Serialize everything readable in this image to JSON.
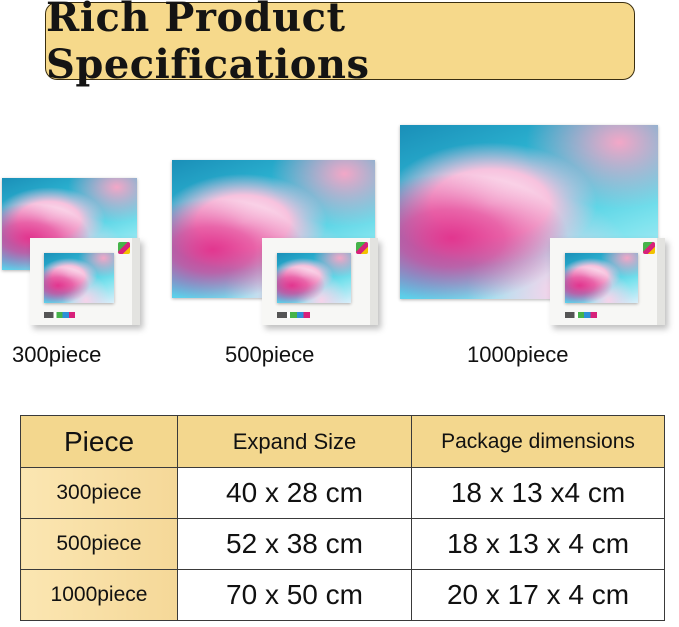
{
  "title": "Rich Product Specifications",
  "sizes": [
    {
      "label": "300piece"
    },
    {
      "label": "500piece"
    },
    {
      "label": "1000piece"
    }
  ],
  "table": {
    "headers": [
      "Piece",
      "Expand Size",
      "Package dimensions"
    ],
    "rows": [
      [
        "300piece",
        "40 x 28 cm",
        "18 x 13 x4 cm"
      ],
      [
        "500piece",
        "52 x 38 cm",
        "18 x 13 x 4 cm"
      ],
      [
        "1000piece",
        "70 x 50 cm",
        "20 x 17 x 4 cm"
      ]
    ]
  },
  "colors": {
    "banner": "#f6d98b",
    "header": "#f3d78e"
  }
}
